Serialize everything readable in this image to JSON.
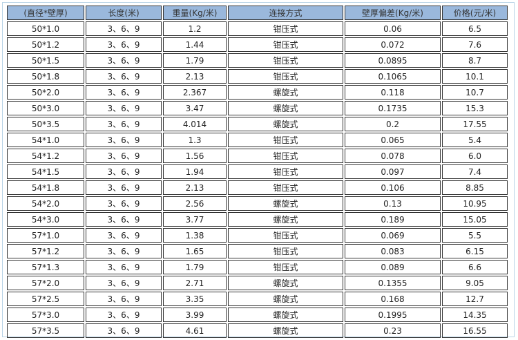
{
  "colors": {
    "header_bg": "#9ab8dc",
    "border": "#333333",
    "frame": "#b8d3e6"
  },
  "headers": [
    "(直径*壁厚)",
    "长度(米)",
    "重量(Kg/米)",
    "连接方式",
    "壁厚偏差(Kg/米)",
    "价格(元/米)"
  ],
  "rows": [
    [
      "50*1.0",
      "3、6、9",
      "1.2",
      "钳压式",
      "0.06",
      "6.5"
    ],
    [
      "50*1.2",
      "3、6、9",
      "1.44",
      "钳压式",
      "0.072",
      "7.6"
    ],
    [
      "50*1.5",
      "3、6、9",
      "1.79",
      "钳压式",
      "0.0895",
      "8.7"
    ],
    [
      "50*1.8",
      "3、6、9",
      "2.13",
      "钳压式",
      "0.1065",
      "10.1"
    ],
    [
      "50*2.0",
      "3、6、9",
      "2.367",
      "螺旋式",
      "0.118",
      "10.7"
    ],
    [
      "50*3.0",
      "3、6、9",
      "3.47",
      "螺旋式",
      "0.1735",
      "15.3"
    ],
    [
      "50*3.5",
      "3、6、9",
      "4.014",
      "螺旋式",
      "0.2",
      "17.55"
    ],
    [
      "54*1.0",
      "3、6、9",
      "1.3",
      "钳压式",
      "0.065",
      "5.4"
    ],
    [
      "54*1.2",
      "3、6、9",
      "1.56",
      "钳压式",
      "0.078",
      "6.0"
    ],
    [
      "54*1.5",
      "3、6、9",
      "1.94",
      "钳压式",
      "0.097",
      "7.4"
    ],
    [
      "54*1.8",
      "3、6、9",
      "2.13",
      "钳压式",
      "0.106",
      "8.85"
    ],
    [
      "54*2.0",
      "3、6、9",
      "2.56",
      "螺旋式",
      "0.13",
      "10.95"
    ],
    [
      "54*3.0",
      "3、6、9",
      "3.77",
      "螺旋式",
      "0.189",
      "15.05"
    ],
    [
      "57*1.0",
      "3、6、9",
      "1.38",
      "钳压式",
      "0.069",
      "5.5"
    ],
    [
      "57*1.2",
      "3、6、9",
      "1.65",
      "钳压式",
      "0.083",
      "6.15"
    ],
    [
      "57*1.3",
      "3、6、9",
      "1.79",
      "钳压式",
      "0.089",
      "6.6"
    ],
    [
      "57*2.0",
      "3、6、9",
      "2.71",
      "螺旋式",
      "0.1355",
      "9.05"
    ],
    [
      "57*2.5",
      "3、6、9",
      "3.35",
      "螺旋式",
      "0.168",
      "12.7"
    ],
    [
      "57*3.0",
      "3、6、9",
      "3.99",
      "螺旋式",
      "0.1995",
      "14.35"
    ],
    [
      "57*3.5",
      "3、6、9",
      "4.61",
      "螺旋式",
      "0.23",
      "16.55"
    ]
  ]
}
